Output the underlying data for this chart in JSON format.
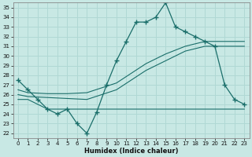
{
  "xlabel": "Humidex (Indice chaleur)",
  "xlim": [
    -0.5,
    23.5
  ],
  "ylim": [
    21.5,
    35.5
  ],
  "yticks": [
    22,
    23,
    24,
    25,
    26,
    27,
    28,
    29,
    30,
    31,
    32,
    33,
    34,
    35
  ],
  "xticks": [
    0,
    1,
    2,
    3,
    4,
    5,
    6,
    7,
    8,
    9,
    10,
    11,
    12,
    13,
    14,
    15,
    16,
    17,
    18,
    19,
    20,
    21,
    22,
    23
  ],
  "bg_color": "#c8e8e4",
  "grid_color": "#b0d8d4",
  "line_color": "#1a6e6a",
  "curve1_x": [
    0,
    1,
    2,
    3,
    4,
    5,
    6,
    7,
    8,
    9,
    10,
    11,
    12,
    13,
    14,
    15,
    16,
    17,
    18,
    19,
    20,
    21,
    22,
    23
  ],
  "curve1_y": [
    27.5,
    26.5,
    25.5,
    24.5,
    24.0,
    24.5,
    23.0,
    22.0,
    24.2,
    27.0,
    29.5,
    31.5,
    33.5,
    33.5,
    34.0,
    35.5,
    33.0,
    32.5,
    32.0,
    31.5,
    31.0,
    27.0,
    25.5,
    25.0
  ],
  "curve2_x": [
    0,
    1,
    3,
    5,
    7,
    10,
    13,
    15,
    17,
    19,
    20,
    22,
    23
  ],
  "curve2_y": [
    26.5,
    26.2,
    26.1,
    26.1,
    26.2,
    27.2,
    29.2,
    30.2,
    31.0,
    31.5,
    31.5,
    31.5,
    31.5
  ],
  "curve3_x": [
    0,
    1,
    3,
    5,
    7,
    10,
    13,
    15,
    17,
    19,
    20,
    22,
    23
  ],
  "curve3_y": [
    26.0,
    25.8,
    25.7,
    25.6,
    25.5,
    26.5,
    28.5,
    29.5,
    30.5,
    31.0,
    31.0,
    31.0,
    31.0
  ],
  "curve4_x": [
    0,
    1,
    2,
    3,
    4,
    5,
    6,
    7,
    8,
    9,
    10,
    11,
    12,
    13,
    14,
    15,
    16,
    17,
    18,
    19,
    20,
    21,
    22,
    23
  ],
  "curve4_y": [
    25.5,
    25.5,
    25.0,
    24.5,
    24.5,
    24.5,
    24.5,
    24.5,
    24.5,
    24.5,
    24.5,
    24.5,
    24.5,
    24.5,
    24.5,
    24.5,
    24.5,
    24.5,
    24.5,
    24.5,
    24.5,
    24.5,
    24.5,
    24.5
  ]
}
